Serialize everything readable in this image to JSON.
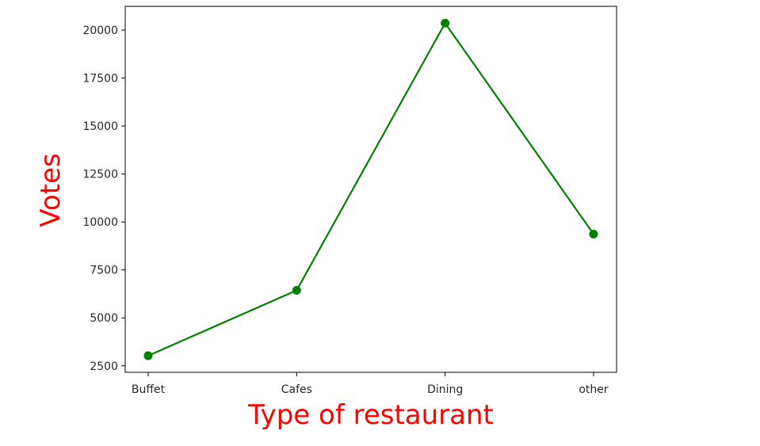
{
  "chart_data": {
    "type": "line",
    "categories": [
      "Buffet",
      "Cafes",
      "Dining",
      "other"
    ],
    "series": [
      {
        "values": [
          3028,
          6434,
          20363,
          9367
        ]
      }
    ],
    "xlabel": "Type of restaurant",
    "ylabel": "Votes",
    "ylim": [
      2160,
      21240
    ],
    "yticks": [
      2500,
      5000,
      7500,
      10000,
      12500,
      15000,
      17500,
      20000
    ],
    "ytick_labels": [
      "2500",
      "5000",
      "7500",
      "10000",
      "12500",
      "15000",
      "17500",
      "20000"
    ],
    "grid": false,
    "legend": "none",
    "colors": {
      "line": "#008000",
      "marker": "#008000",
      "axis_labels": "#ff0000",
      "frame": "#000000"
    }
  }
}
